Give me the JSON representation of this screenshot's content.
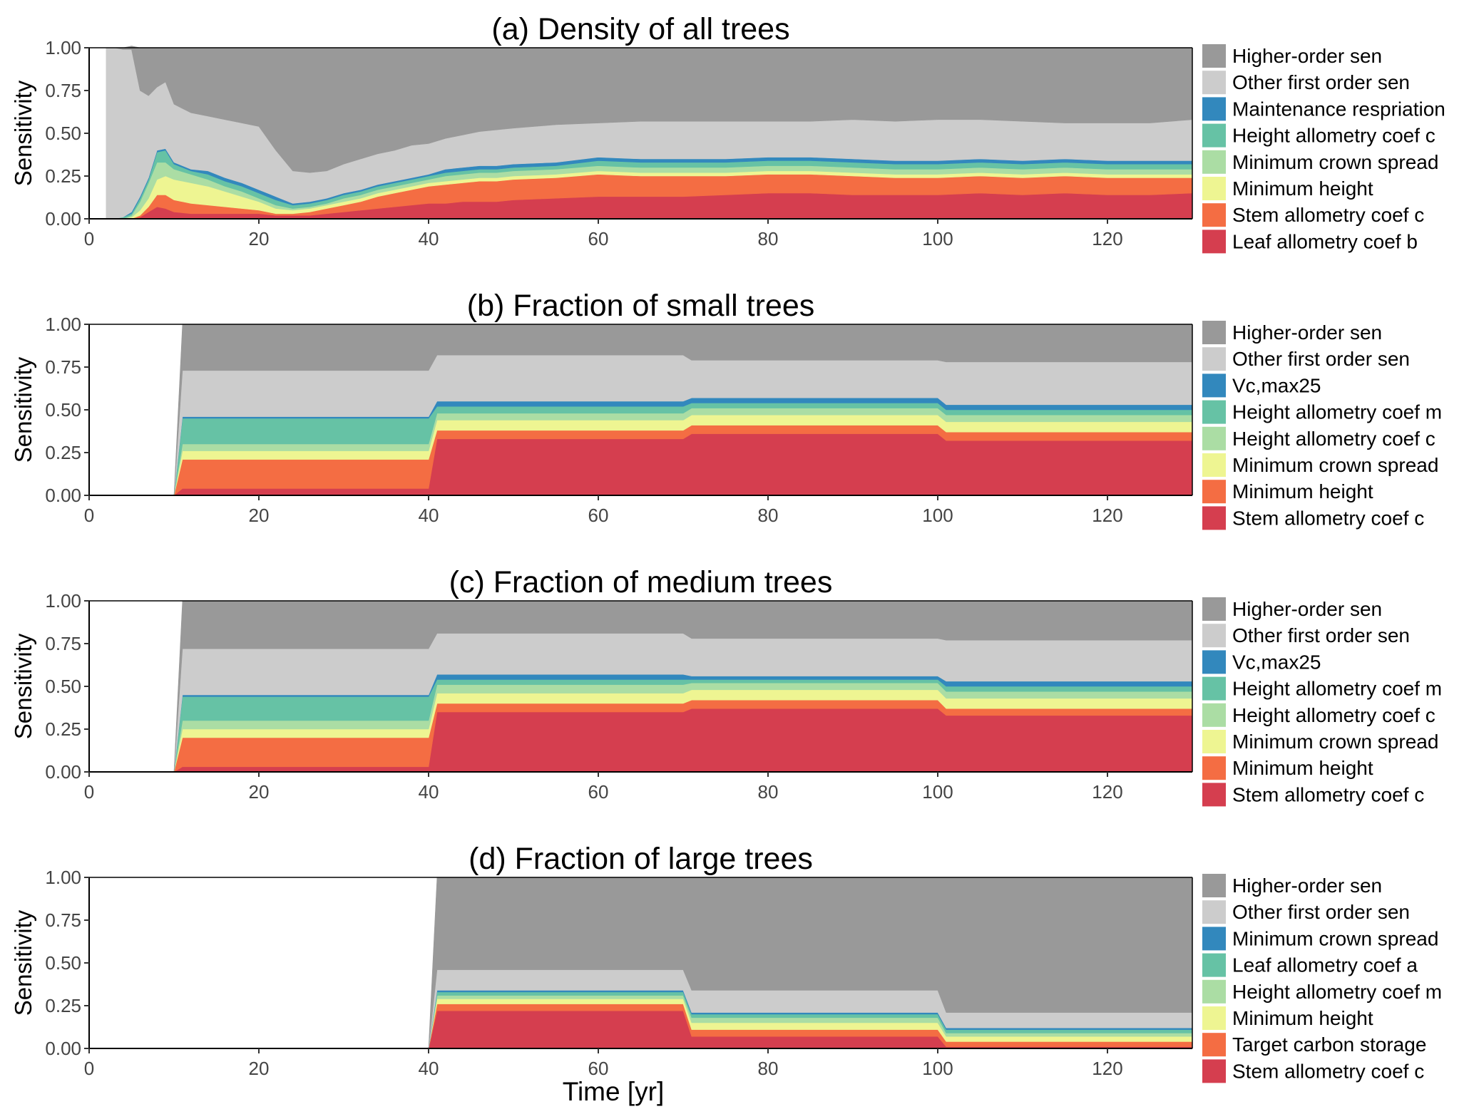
{
  "x_axis": {
    "label": "Time [yr]",
    "range": [
      0,
      130
    ],
    "ticks": [
      0,
      20,
      40,
      60,
      80,
      100,
      120
    ],
    "tick_labels": [
      "0",
      "20",
      "40",
      "60",
      "80",
      "100",
      "120"
    ]
  },
  "chart_data": [
    {
      "type": "area",
      "stacked": true,
      "title": "(a) Density of all trees",
      "xlabel": "",
      "ylabel": "Sensitivity",
      "xlim": [
        0,
        130
      ],
      "ylim": [
        0,
        1
      ],
      "yticks": [
        0,
        0.25,
        0.5,
        0.75,
        1
      ],
      "ytick_labels": [
        "0.00",
        "0.25",
        "0.50",
        "0.75",
        "1.00"
      ],
      "grid": false,
      "legend_position": "right",
      "x": [
        2,
        3,
        4,
        5,
        6,
        7,
        8,
        9,
        10,
        12,
        14,
        16,
        18,
        20,
        22,
        24,
        26,
        28,
        30,
        32,
        34,
        36,
        38,
        40,
        42,
        44,
        46,
        48,
        50,
        55,
        60,
        65,
        70,
        75,
        80,
        85,
        90,
        95,
        100,
        105,
        110,
        115,
        120,
        125,
        130
      ],
      "series": [
        {
          "name": "Leaf allometry coef b",
          "color": "#D53E4F",
          "values": [
            0,
            0,
            0,
            0,
            0.01,
            0.04,
            0.07,
            0.06,
            0.04,
            0.03,
            0.03,
            0.03,
            0.03,
            0.03,
            0.02,
            0.02,
            0.02,
            0.03,
            0.04,
            0.05,
            0.06,
            0.07,
            0.08,
            0.09,
            0.09,
            0.1,
            0.1,
            0.1,
            0.11,
            0.12,
            0.13,
            0.13,
            0.13,
            0.14,
            0.15,
            0.15,
            0.14,
            0.14,
            0.14,
            0.15,
            0.14,
            0.15,
            0.14,
            0.14,
            0.15
          ]
        },
        {
          "name": "Stem allometry coef c",
          "color": "#F46D43",
          "values": [
            0,
            0,
            0,
            0,
            0.01,
            0.03,
            0.07,
            0.08,
            0.07,
            0.06,
            0.05,
            0.04,
            0.03,
            0.02,
            0.01,
            0.01,
            0.02,
            0.03,
            0.04,
            0.05,
            0.07,
            0.08,
            0.09,
            0.1,
            0.11,
            0.11,
            0.12,
            0.12,
            0.12,
            0.12,
            0.13,
            0.12,
            0.12,
            0.11,
            0.11,
            0.11,
            0.11,
            0.1,
            0.1,
            0.1,
            0.1,
            0.1,
            0.1,
            0.1,
            0.09
          ]
        },
        {
          "name": "Minimum height",
          "color": "#EEF592",
          "values": [
            0,
            0,
            0,
            0.01,
            0.03,
            0.05,
            0.09,
            0.11,
            0.12,
            0.12,
            0.11,
            0.09,
            0.07,
            0.05,
            0.03,
            0.02,
            0.02,
            0.02,
            0.02,
            0.02,
            0.02,
            0.02,
            0.02,
            0.02,
            0.02,
            0.02,
            0.02,
            0.02,
            0.02,
            0.02,
            0.02,
            0.02,
            0.02,
            0.02,
            0.02,
            0.02,
            0.02,
            0.02,
            0.02,
            0.02,
            0.02,
            0.02,
            0.02,
            0.02,
            0.02
          ]
        },
        {
          "name": "Minimum crown spread",
          "color": "#ABDDA4",
          "values": [
            0,
            0,
            0,
            0.01,
            0.05,
            0.09,
            0.1,
            0.08,
            0.06,
            0.05,
            0.04,
            0.03,
            0.03,
            0.02,
            0.02,
            0.01,
            0.01,
            0.01,
            0.02,
            0.02,
            0.02,
            0.02,
            0.02,
            0.02,
            0.03,
            0.03,
            0.03,
            0.03,
            0.03,
            0.03,
            0.03,
            0.03,
            0.03,
            0.03,
            0.03,
            0.03,
            0.03,
            0.03,
            0.03,
            0.03,
            0.03,
            0.03,
            0.03,
            0.03,
            0.03
          ]
        },
        {
          "name": "Height allometry coef c",
          "color": "#66C2A5",
          "values": [
            0,
            0,
            0.01,
            0.01,
            0.02,
            0.02,
            0.06,
            0.07,
            0.03,
            0.02,
            0.03,
            0.03,
            0.03,
            0.03,
            0.03,
            0.02,
            0.02,
            0.02,
            0.02,
            0.02,
            0.02,
            0.02,
            0.02,
            0.02,
            0.02,
            0.02,
            0.02,
            0.02,
            0.02,
            0.02,
            0.03,
            0.03,
            0.03,
            0.03,
            0.03,
            0.03,
            0.03,
            0.03,
            0.03,
            0.03,
            0.03,
            0.03,
            0.03,
            0.03,
            0.03
          ]
        },
        {
          "name": "Maintenance respriation",
          "color": "#3288BD",
          "values": [
            0,
            0,
            0,
            0.01,
            0.01,
            0.01,
            0.01,
            0.01,
            0.01,
            0.01,
            0.02,
            0.02,
            0.02,
            0.02,
            0.02,
            0.01,
            0.01,
            0.01,
            0.01,
            0.01,
            0.01,
            0.01,
            0.01,
            0.01,
            0.02,
            0.02,
            0.02,
            0.02,
            0.02,
            0.02,
            0.02,
            0.02,
            0.02,
            0.02,
            0.02,
            0.02,
            0.02,
            0.02,
            0.02,
            0.02,
            0.02,
            0.02,
            0.02,
            0.02,
            0.02
          ]
        },
        {
          "name": "Other first order sen",
          "color": "#CCCCCC",
          "values": [
            1,
            1,
            0.98,
            0.95,
            0.62,
            0.48,
            0.37,
            0.39,
            0.34,
            0.33,
            0.32,
            0.34,
            0.35,
            0.37,
            0.27,
            0.19,
            0.17,
            0.16,
            0.17,
            0.18,
            0.18,
            0.18,
            0.19,
            0.18,
            0.18,
            0.19,
            0.2,
            0.21,
            0.21,
            0.22,
            0.2,
            0.22,
            0.22,
            0.22,
            0.21,
            0.21,
            0.23,
            0.23,
            0.24,
            0.23,
            0.23,
            0.21,
            0.22,
            0.22,
            0.24
          ]
        },
        {
          "name": "Higher-order sen",
          "color": "#999999",
          "values": [
            0,
            0,
            0.01,
            0.02,
            0.25,
            0.28,
            0.23,
            0.2,
            0.33,
            0.38,
            0.4,
            0.42,
            0.44,
            0.46,
            0.6,
            0.72,
            0.73,
            0.72,
            0.68,
            0.65,
            0.62,
            0.6,
            0.57,
            0.56,
            0.53,
            0.51,
            0.49,
            0.48,
            0.47,
            0.45,
            0.44,
            0.43,
            0.43,
            0.43,
            0.43,
            0.43,
            0.42,
            0.43,
            0.42,
            0.42,
            0.43,
            0.44,
            0.44,
            0.44,
            0.42
          ]
        }
      ]
    },
    {
      "type": "area",
      "stacked": true,
      "title": "(b) Fraction of small trees",
      "xlabel": "",
      "ylabel": "Sensitivity",
      "xlim": [
        0,
        130
      ],
      "ylim": [
        0,
        1
      ],
      "yticks": [
        0,
        0.25,
        0.5,
        0.75,
        1
      ],
      "ytick_labels": [
        "0.00",
        "0.25",
        "0.50",
        "0.75",
        "1.00"
      ],
      "grid": false,
      "legend_position": "right",
      "x": [
        10,
        11,
        40,
        41,
        70,
        71,
        100,
        101,
        130
      ],
      "series": [
        {
          "name": "Stem allometry coef c",
          "color": "#D53E4F",
          "values": [
            0,
            0.04,
            0.04,
            0.33,
            0.33,
            0.36,
            0.36,
            0.32,
            0.32
          ]
        },
        {
          "name": "Minimum height",
          "color": "#F46D43",
          "values": [
            0,
            0.17,
            0.17,
            0.05,
            0.05,
            0.05,
            0.05,
            0.05,
            0.05
          ]
        },
        {
          "name": "Minimum crown spread",
          "color": "#EEF592",
          "values": [
            0,
            0.05,
            0.05,
            0.06,
            0.06,
            0.06,
            0.06,
            0.06,
            0.06
          ]
        },
        {
          "name": "Height allometry coef c",
          "color": "#ABDDA4",
          "values": [
            0,
            0.04,
            0.04,
            0.04,
            0.04,
            0.04,
            0.04,
            0.04,
            0.04
          ]
        },
        {
          "name": "Height allometry coef m",
          "color": "#66C2A5",
          "values": [
            0,
            0.15,
            0.15,
            0.04,
            0.04,
            0.03,
            0.03,
            0.03,
            0.03
          ]
        },
        {
          "name": "Vc,max25",
          "color": "#3288BD",
          "values": [
            0,
            0.01,
            0.01,
            0.03,
            0.03,
            0.03,
            0.03,
            0.03,
            0.03
          ]
        },
        {
          "name": "Other first order sen",
          "color": "#CCCCCC",
          "values": [
            0,
            0.27,
            0.27,
            0.27,
            0.27,
            0.22,
            0.22,
            0.25,
            0.25
          ]
        },
        {
          "name": "Higher-order sen",
          "color": "#999999",
          "values": [
            0,
            0.27,
            0.27,
            0.18,
            0.18,
            0.21,
            0.21,
            0.22,
            0.22
          ]
        }
      ]
    },
    {
      "type": "area",
      "stacked": true,
      "title": "(c) Fraction of medium trees",
      "xlabel": "",
      "ylabel": "Sensitivity",
      "xlim": [
        0,
        130
      ],
      "ylim": [
        0,
        1
      ],
      "yticks": [
        0,
        0.25,
        0.5,
        0.75,
        1
      ],
      "ytick_labels": [
        "0.00",
        "0.25",
        "0.50",
        "0.75",
        "1.00"
      ],
      "grid": false,
      "legend_position": "right",
      "x": [
        10,
        11,
        40,
        41,
        70,
        71,
        100,
        101,
        130
      ],
      "series": [
        {
          "name": "Stem allometry coef c",
          "color": "#D53E4F",
          "values": [
            0,
            0.03,
            0.03,
            0.35,
            0.35,
            0.37,
            0.37,
            0.33,
            0.33
          ]
        },
        {
          "name": "Minimum height",
          "color": "#F46D43",
          "values": [
            0,
            0.17,
            0.17,
            0.05,
            0.05,
            0.05,
            0.05,
            0.04,
            0.04
          ]
        },
        {
          "name": "Minimum crown spread",
          "color": "#EEF592",
          "values": [
            0,
            0.05,
            0.05,
            0.06,
            0.06,
            0.06,
            0.06,
            0.06,
            0.06
          ]
        },
        {
          "name": "Height allometry coef c",
          "color": "#ABDDA4",
          "values": [
            0,
            0.05,
            0.05,
            0.05,
            0.05,
            0.04,
            0.04,
            0.04,
            0.04
          ]
        },
        {
          "name": "Height allometry coef m",
          "color": "#66C2A5",
          "values": [
            0,
            0.14,
            0.14,
            0.03,
            0.03,
            0.02,
            0.02,
            0.03,
            0.03
          ]
        },
        {
          "name": "Vc,max25",
          "color": "#3288BD",
          "values": [
            0,
            0.01,
            0.01,
            0.03,
            0.03,
            0.02,
            0.02,
            0.03,
            0.03
          ]
        },
        {
          "name": "Other first order sen",
          "color": "#CCCCCC",
          "values": [
            0,
            0.27,
            0.27,
            0.24,
            0.24,
            0.22,
            0.22,
            0.24,
            0.24
          ]
        },
        {
          "name": "Higher-order sen",
          "color": "#999999",
          "values": [
            0,
            0.28,
            0.28,
            0.19,
            0.19,
            0.22,
            0.22,
            0.23,
            0.23
          ]
        }
      ]
    },
    {
      "type": "area",
      "stacked": true,
      "title": "(d) Fraction of large trees",
      "xlabel": "Time [yr]",
      "ylabel": "Sensitivity",
      "xlim": [
        0,
        130
      ],
      "ylim": [
        0,
        1
      ],
      "yticks": [
        0,
        0.25,
        0.5,
        0.75,
        1
      ],
      "ytick_labels": [
        "0.00",
        "0.25",
        "0.50",
        "0.75",
        "1.00"
      ],
      "grid": false,
      "legend_position": "right",
      "x": [
        40,
        41,
        70,
        71,
        100,
        101,
        130
      ],
      "series": [
        {
          "name": "Stem allometry coef c",
          "color": "#D53E4F",
          "values": [
            0,
            0.22,
            0.22,
            0.07,
            0.07,
            0.01,
            0.01
          ]
        },
        {
          "name": "Target carbon storage",
          "color": "#F46D43",
          "values": [
            0,
            0.04,
            0.04,
            0.04,
            0.04,
            0.03,
            0.03
          ]
        },
        {
          "name": "Minimum height",
          "color": "#EEF592",
          "values": [
            0,
            0.03,
            0.03,
            0.04,
            0.04,
            0.03,
            0.03
          ]
        },
        {
          "name": "Height allometry coef m",
          "color": "#ABDDA4",
          "values": [
            0,
            0.02,
            0.02,
            0.03,
            0.03,
            0.02,
            0.02
          ]
        },
        {
          "name": "Leaf allometry coef a",
          "color": "#66C2A5",
          "values": [
            0,
            0.02,
            0.02,
            0.02,
            0.02,
            0.02,
            0.02
          ]
        },
        {
          "name": "Minimum crown spread",
          "color": "#3288BD",
          "values": [
            0,
            0.01,
            0.01,
            0.01,
            0.01,
            0.01,
            0.01
          ]
        },
        {
          "name": "Other first order sen",
          "color": "#CCCCCC",
          "values": [
            0,
            0.12,
            0.12,
            0.13,
            0.13,
            0.09,
            0.09
          ]
        },
        {
          "name": "Higher-order sen",
          "color": "#999999",
          "values": [
            0,
            0.54,
            0.54,
            0.66,
            0.66,
            0.79,
            0.79
          ]
        }
      ]
    }
  ]
}
